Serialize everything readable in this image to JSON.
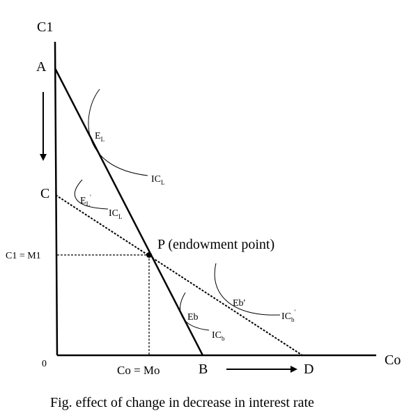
{
  "axes": {
    "y_label": "C1",
    "x_label": "Co",
    "origin": "0"
  },
  "points": {
    "a": "A",
    "b": "B",
    "c": "C",
    "d": "D",
    "p": "P (endowment point)"
  },
  "guides": {
    "y_value": "C1 = M1",
    "x_value": "Co = Mo"
  },
  "equilibria": {
    "el_main": "E",
    "el_main_sub": "L",
    "el_prime_main": "E",
    "el_prime_sub": "L",
    "el_prime_mark": "'",
    "eb": "Eb",
    "eb_prime": "Eb'"
  },
  "curves": {
    "ic_main": "IC",
    "ic_l_sub": "L",
    "ic_b_sub": "b",
    "prime_mark": "'"
  },
  "caption": "Fig. effect of change in decrease in interest rate"
}
